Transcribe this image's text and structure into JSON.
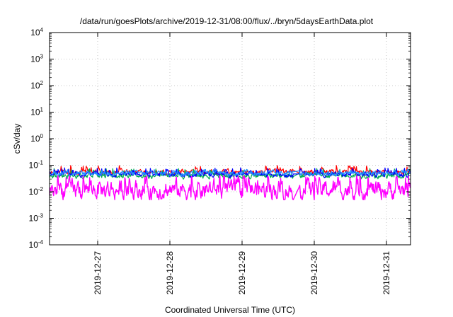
{
  "chart_data": {
    "type": "line",
    "title": "/data/run/goesPlots/archive/2019-12-31/08:00/flux/../bryn/5daysEarthData.plot",
    "xlabel": "Coordinated Universal Time (UTC)",
    "ylabel": "cSv/day",
    "yscale": "log",
    "ylim": [
      0.0001,
      10000
    ],
    "y_ticks": [
      {
        "base": "10",
        "exp": "-4",
        "value": 0.0001
      },
      {
        "base": "10",
        "exp": "-3",
        "value": 0.001
      },
      {
        "base": "10",
        "exp": "-2",
        "value": 0.01
      },
      {
        "base": "10",
        "exp": "-1",
        "value": 0.1
      },
      {
        "base": "10",
        "exp": "0",
        "value": 1
      },
      {
        "base": "10",
        "exp": "1",
        "value": 10
      },
      {
        "base": "10",
        "exp": "2",
        "value": 100
      },
      {
        "base": "10",
        "exp": "3",
        "value": 1000
      },
      {
        "base": "10",
        "exp": "4",
        "value": 10000
      }
    ],
    "xlim": [
      "2019-12-26T08:00",
      "2019-12-31T08:00"
    ],
    "x_ticks": [
      "2019-12-27",
      "2019-12-28",
      "2019-12-29",
      "2019-12-30",
      "2019-12-31"
    ],
    "grid": true,
    "data_gap": [
      "2019-12-29T17:00",
      "2019-12-29T19:00"
    ],
    "series": [
      {
        "color": "#ff0000",
        "typical": 0.055,
        "low": 0.035,
        "high": 0.1
      },
      {
        "color": "#00b050",
        "typical": 0.04,
        "low": 0.025,
        "high": 0.075
      },
      {
        "color": "#0000ff",
        "typical": 0.045,
        "low": 0.028,
        "high": 0.08
      },
      {
        "color": "#1e90ff",
        "typical": 0.05,
        "low": 0.035,
        "high": 0.07
      },
      {
        "color": "#ff00ff",
        "typical": 0.012,
        "low": 0.005,
        "high": 0.04
      }
    ]
  }
}
